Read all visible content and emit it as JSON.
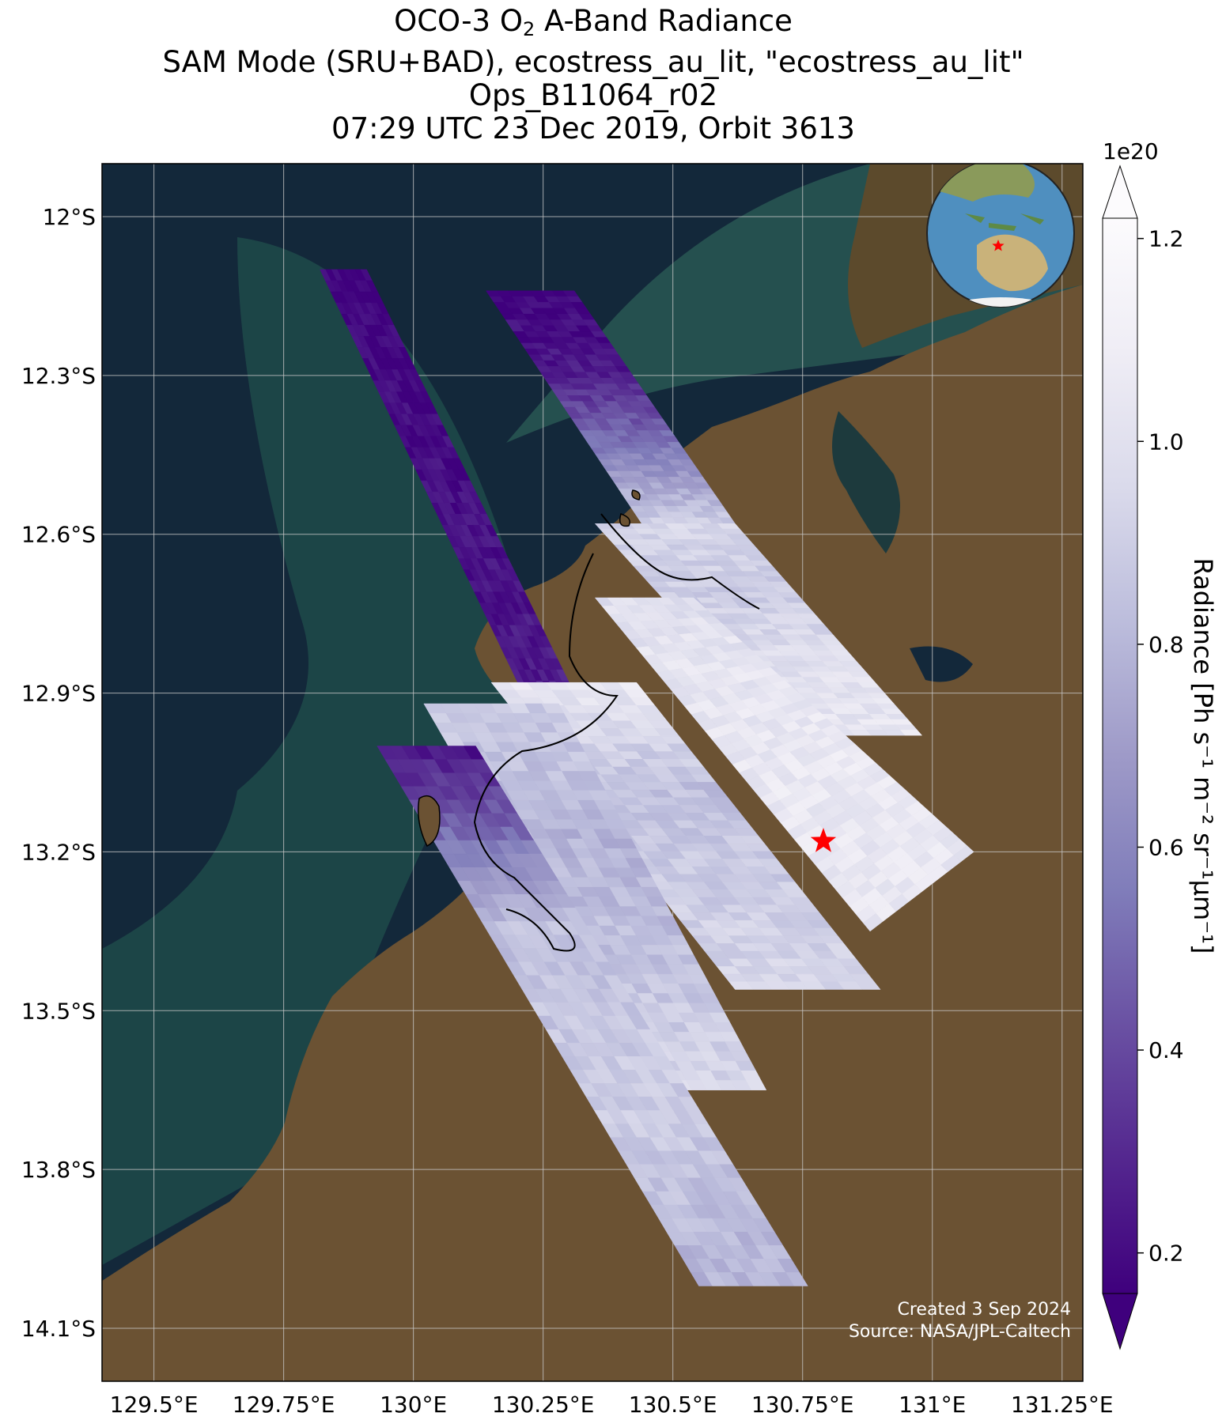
{
  "title": {
    "line1_pre": "OCO-3 O",
    "line1_sub": "2",
    "line1_post": " A-Band Radiance",
    "line2": "SAM Mode (SRU+BAD), ecostress_au_lit, \"ecostress_au_lit\"",
    "line3": "Ops_B11064_r02",
    "line4": "07:29 UTC 23 Dec 2019, Orbit 3613"
  },
  "map": {
    "lon_range": [
      129.4,
      131.29
    ],
    "lat_range": [
      -14.2,
      -11.9
    ],
    "lon_ticks": [
      {
        "value": 129.5,
        "label": "129.5°E"
      },
      {
        "value": 129.75,
        "label": "129.75°E"
      },
      {
        "value": 130.0,
        "label": "130°E"
      },
      {
        "value": 130.25,
        "label": "130.25°E"
      },
      {
        "value": 130.5,
        "label": "130.5°E"
      },
      {
        "value": 130.75,
        "label": "130.75°E"
      },
      {
        "value": 131.0,
        "label": "131°E"
      },
      {
        "value": 131.25,
        "label": "131.25°E"
      }
    ],
    "lat_ticks": [
      {
        "value": -12.0,
        "label": "12°S"
      },
      {
        "value": -12.3,
        "label": "12.3°S"
      },
      {
        "value": -12.6,
        "label": "12.6°S"
      },
      {
        "value": -12.9,
        "label": "12.9°S"
      },
      {
        "value": -13.2,
        "label": "13.2°S"
      },
      {
        "value": -13.5,
        "label": "13.5°S"
      },
      {
        "value": -13.8,
        "label": "13.8°S"
      },
      {
        "value": -14.1,
        "label": "14.1°S"
      }
    ],
    "gridlines": true,
    "target_marker": {
      "lon": 130.79,
      "lat": -13.18,
      "color": "#ff0000"
    },
    "colors": {
      "ocean": "#13283a",
      "shelf": "#1f4a4a",
      "land": "#6b5233",
      "gridline": "#c8c8c8"
    },
    "inset_globe": {
      "place": "top-right",
      "ocean": "#4f8fbf",
      "land": "#c9b27a",
      "marker_color": "#ff0000"
    },
    "credit_line1": "Created 3 Sep 2024",
    "credit_line2": "Source: NASA/JPL-Caltech"
  },
  "colorbar": {
    "exponent_label": "1e20",
    "label": "Radiance [Ph s⁻¹ m⁻² sr⁻¹μm⁻¹]",
    "range": [
      0.16,
      1.22
    ],
    "ticks": [
      {
        "value": 0.2,
        "label": "0.2"
      },
      {
        "value": 0.4,
        "label": "0.4"
      },
      {
        "value": 0.6,
        "label": "0.6"
      },
      {
        "value": 0.8,
        "label": "0.8"
      },
      {
        "value": 1.0,
        "label": "1.0"
      },
      {
        "value": 1.2,
        "label": "1.2"
      }
    ],
    "colormap": [
      "#3f007d",
      "#54278f",
      "#6a51a3",
      "#807dba",
      "#9e9ac8",
      "#bcbddc",
      "#dadaeb",
      "#efedf5",
      "#fcfbfd"
    ]
  },
  "chart_data": {
    "type": "heatmap",
    "title": "OCO-3 O2 A-Band Radiance",
    "value_unit_multiplier": "1e20",
    "swaths": [
      {
        "name": "swath-1",
        "corners": [
          [
            129.82,
            -12.1
          ],
          [
            129.91,
            -12.1
          ],
          [
            130.33,
            -12.94
          ],
          [
            130.23,
            -12.94
          ]
        ],
        "values": [
          0.22,
          0.25,
          0.28,
          0.32
        ]
      },
      {
        "name": "swath-2",
        "corners": [
          [
            130.14,
            -12.14
          ],
          [
            130.31,
            -12.14
          ],
          [
            130.62,
            -12.58
          ],
          [
            130.44,
            -12.58
          ]
        ],
        "values": [
          0.23,
          0.3,
          0.6,
          0.95
        ]
      },
      {
        "name": "swath-3",
        "corners": [
          [
            130.35,
            -12.58
          ],
          [
            130.62,
            -12.58
          ],
          [
            130.98,
            -12.98
          ],
          [
            130.72,
            -12.98
          ]
        ],
        "values": [
          1.0,
          0.95,
          1.05,
          1.1
        ]
      },
      {
        "name": "swath-4",
        "corners": [
          [
            130.35,
            -12.72
          ],
          [
            130.54,
            -12.72
          ],
          [
            131.08,
            -13.2
          ],
          [
            130.88,
            -13.35
          ]
        ],
        "values": [
          1.05,
          1.1,
          1.12,
          1.1
        ]
      },
      {
        "name": "swath-5",
        "corners": [
          [
            130.15,
            -12.88
          ],
          [
            130.43,
            -12.88
          ],
          [
            130.9,
            -13.46
          ],
          [
            130.62,
            -13.46
          ]
        ],
        "values": [
          1.1,
          0.9,
          0.95,
          1.0
        ]
      },
      {
        "name": "swath-6",
        "corners": [
          [
            130.02,
            -12.92
          ],
          [
            130.28,
            -12.92
          ],
          [
            130.68,
            -13.65
          ],
          [
            130.45,
            -13.65
          ]
        ],
        "values": [
          0.95,
          0.85,
          0.9,
          1.0
        ]
      },
      {
        "name": "swath-7",
        "corners": [
          [
            129.93,
            -13.0
          ],
          [
            130.12,
            -13.0
          ],
          [
            130.76,
            -14.02
          ],
          [
            130.55,
            -14.02
          ]
        ],
        "values": [
          0.3,
          0.9,
          0.95,
          0.85
        ]
      }
    ]
  }
}
